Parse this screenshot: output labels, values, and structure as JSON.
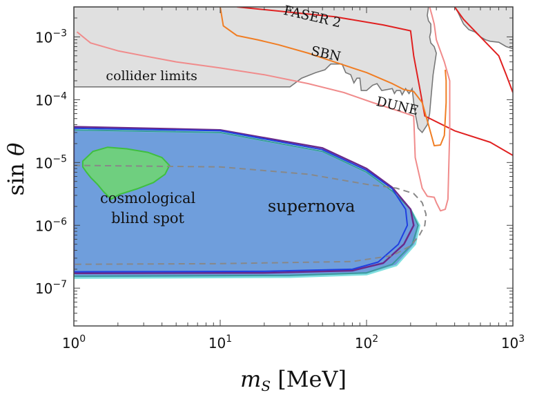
{
  "chart_data": {
    "type": "area",
    "xlabel": "m_S [MeV]",
    "ylabel": "sin θ",
    "xscale": "log",
    "yscale": "log",
    "xlim": [
      1,
      1000
    ],
    "ylim": [
      2.5e-08,
      0.003
    ],
    "x_ticks": [
      {
        "base": "10",
        "exp": "0",
        "value": 1
      },
      {
        "base": "10",
        "exp": "1",
        "value": 10
      },
      {
        "base": "10",
        "exp": "2",
        "value": 100
      },
      {
        "base": "10",
        "exp": "3",
        "value": 1000
      }
    ],
    "y_ticks": [
      {
        "base": "10",
        "exp": "−7",
        "value": 1e-07
      },
      {
        "base": "10",
        "exp": "−6",
        "value": 1e-06
      },
      {
        "base": "10",
        "exp": "−5",
        "value": 1e-05
      },
      {
        "base": "10",
        "exp": "−4",
        "value": 0.0001
      },
      {
        "base": "10",
        "exp": "−3",
        "value": 0.001
      }
    ],
    "regions": [
      {
        "label": "supernova",
        "fill": "#6f9edc",
        "boundaries": [
          {
            "name": "supernova-outer-cyan",
            "color": "#7fe0de",
            "width": 2.5,
            "points": [
              [
                1,
                3.3e-05
              ],
              [
                10,
                3e-05
              ],
              [
                50,
                1.5e-05
              ],
              [
                100,
                7e-06
              ],
              [
                150,
                3.5e-06
              ],
              [
                200,
                1.8e-06
              ],
              [
                230,
                1e-06
              ],
              [
                215,
                5e-07
              ],
              [
                160,
                2.3e-07
              ],
              [
                100,
                1.65e-07
              ],
              [
                30,
                1.5e-07
              ],
              [
                1,
                1.45e-07
              ]
            ]
          },
          {
            "name": "supernova-teal",
            "color": "#3a9a9a",
            "width": 2,
            "points": [
              [
                1,
                3.3e-05
              ],
              [
                10,
                3e-05
              ],
              [
                50,
                1.5e-05
              ],
              [
                100,
                7e-06
              ],
              [
                150,
                3.5e-06
              ],
              [
                200,
                1.8e-06
              ],
              [
                225,
                1e-06
              ],
              [
                205,
                5e-07
              ],
              [
                150,
                2.4e-07
              ],
              [
                100,
                1.75e-07
              ],
              [
                30,
                1.6e-07
              ],
              [
                1,
                1.55e-07
              ]
            ]
          },
          {
            "name": "supernova-purple",
            "color": "#6a2a8a",
            "width": 2.5,
            "points": [
              [
                1,
                3.7e-05
              ],
              [
                10,
                3.3e-05
              ],
              [
                50,
                1.7e-05
              ],
              [
                100,
                8e-06
              ],
              [
                150,
                4e-06
              ],
              [
                200,
                1.8e-06
              ],
              [
                210,
                1e-06
              ],
              [
                180,
                5e-07
              ],
              [
                130,
                2.5e-07
              ],
              [
                80,
                1.9e-07
              ],
              [
                20,
                1.75e-07
              ],
              [
                1,
                1.72e-07
              ]
            ]
          },
          {
            "name": "supernova-blue",
            "color": "#1f3fe0",
            "width": 2,
            "points": [
              [
                1,
                3.5e-05
              ],
              [
                10,
                3.2e-05
              ],
              [
                50,
                1.6e-05
              ],
              [
                100,
                7.5e-06
              ],
              [
                150,
                3.8e-06
              ],
              [
                185,
                1.8e-06
              ],
              [
                190,
                1e-06
              ],
              [
                165,
                5e-07
              ],
              [
                120,
                2.6e-07
              ],
              [
                80,
                2e-07
              ],
              [
                20,
                1.85e-07
              ],
              [
                1,
                1.82e-07
              ]
            ]
          }
        ]
      },
      {
        "label": "cosmological blind spot",
        "fill": "#6fcf7f",
        "stroke": "#3fbf3f",
        "points": [
          [
            1.15,
            1.05e-05
          ],
          [
            1.35,
            1.5e-05
          ],
          [
            1.7,
            1.75e-05
          ],
          [
            2.3,
            1.65e-05
          ],
          [
            3.2,
            1.45e-05
          ],
          [
            4.0,
            1.2e-05
          ],
          [
            4.5,
            9e-06
          ],
          [
            4.2,
            6.5e-06
          ],
          [
            3.5,
            4.8e-06
          ],
          [
            2.7,
            3.8e-06
          ],
          [
            2.05,
            3.1e-06
          ],
          [
            1.8,
            2.6e-06
          ],
          [
            1.6,
            3.4e-06
          ],
          [
            1.45,
            4.5e-06
          ],
          [
            1.3,
            5.8e-06
          ],
          [
            1.22,
            7e-06
          ],
          [
            1.15,
            8.5e-06
          ]
        ]
      },
      {
        "label": "collider limits",
        "fill": "#e0e0e0",
        "stroke": "#777777",
        "points": [
          [
            1,
            0.00016
          ],
          [
            30,
            0.00016
          ],
          [
            36,
            0.00022
          ],
          [
            45,
            0.00027
          ],
          [
            52,
            0.0003
          ],
          [
            57,
            0.00037
          ],
          [
            68,
            0.00037
          ],
          [
            72,
            0.00027
          ],
          [
            78,
            0.00025
          ],
          [
            82,
            0.000185
          ],
          [
            86,
            0.00022
          ],
          [
            90,
            0.00022
          ],
          [
            92,
            0.00014
          ],
          [
            100,
            0.00014
          ],
          [
            110,
            0.00017
          ],
          [
            118,
            0.00018
          ],
          [
            127,
            0.00014
          ],
          [
            150,
            0.00015
          ],
          [
            155,
            0.000125
          ],
          [
            160,
            0.00014
          ],
          [
            170,
            0.00014
          ],
          [
            175,
            0.00012
          ],
          [
            185,
            0.00015
          ],
          [
            195,
            0.000125
          ],
          [
            205,
            0.00015
          ],
          [
            210,
            9e-05
          ],
          [
            215,
            6e-05
          ],
          [
            225,
            3.5e-05
          ],
          [
            240,
            3e-05
          ],
          [
            260,
            4e-05
          ],
          [
            270,
            6e-05
          ],
          [
            275,
            0.0001
          ],
          [
            285,
            0.00025
          ],
          [
            300,
            0.00055
          ],
          [
            290,
            0.0007
          ],
          [
            275,
            0.0008
          ],
          [
            270,
            0.001
          ],
          [
            275,
            0.0012
          ],
          [
            275,
            0.0016
          ],
          [
            265,
            0.0018
          ],
          [
            260,
            0.0022
          ],
          [
            265,
            0.003
          ],
          [
            400,
            0.003
          ],
          [
            420,
            0.0025
          ],
          [
            460,
            0.0016
          ],
          [
            500,
            0.0013
          ],
          [
            550,
            0.0012
          ],
          [
            600,
            0.001
          ],
          [
            650,
            0.0009
          ],
          [
            700,
            0.00085
          ],
          [
            800,
            0.00082
          ],
          [
            900,
            0.0007
          ],
          [
            1000,
            0.00065
          ],
          [
            1000,
            0.003
          ],
          [
            1,
            0.003
          ]
        ]
      }
    ],
    "series": [
      {
        "name": "FASER 2",
        "color": "#e02020",
        "points": [
          [
            13,
            0.003
          ],
          [
            60,
            0.0021
          ],
          [
            130,
            0.00155
          ],
          [
            200,
            0.00125
          ],
          [
            210,
            0.0005
          ],
          [
            230,
            0.00016
          ],
          [
            250,
            5.5e-05
          ],
          [
            400,
            3.2e-05
          ],
          [
            700,
            2.1e-05
          ],
          [
            1000,
            1.3e-05
          ]
        ]
      },
      {
        "name": "FASER 2 (upper)",
        "color": "#e02020",
        "points": [
          [
            400,
            0.003
          ],
          [
            460,
            0.0019
          ],
          [
            600,
            0.001
          ],
          [
            800,
            0.0005
          ],
          [
            900,
            0.00025
          ],
          [
            1000,
            0.00013
          ]
        ]
      },
      {
        "name": "SBN",
        "color": "#f07d23",
        "points": [
          [
            10,
            0.003
          ],
          [
            10.5,
            0.0015
          ],
          [
            13,
            0.00105
          ],
          [
            18,
            0.0009
          ],
          [
            25,
            0.00075
          ],
          [
            40,
            0.00055
          ],
          [
            60,
            0.0004
          ],
          [
            100,
            0.00027
          ],
          [
            150,
            0.00018
          ],
          [
            180,
            0.000145
          ],
          [
            210,
            0.000135
          ],
          [
            240,
            9e-05
          ],
          [
            265,
            4e-05
          ],
          [
            280,
            2.5e-05
          ],
          [
            290,
            1.85e-05
          ],
          [
            320,
            1.9e-05
          ],
          [
            340,
            2.7e-05
          ],
          [
            350,
            9e-05
          ],
          [
            350,
            0.0002
          ],
          [
            345,
            0.0003
          ]
        ]
      },
      {
        "name": "DUNE",
        "color": "#f08b8b",
        "points": [
          [
            1.05,
            0.0012
          ],
          [
            1.3,
            0.0008
          ],
          [
            2,
            0.0006
          ],
          [
            3,
            0.0005
          ],
          [
            5,
            0.0004
          ],
          [
            10,
            0.00032
          ],
          [
            20,
            0.00025
          ],
          [
            40,
            0.00018
          ],
          [
            70,
            0.00013
          ],
          [
            110,
            9e-05
          ],
          [
            180,
            6.2e-05
          ],
          [
            210,
            5.5e-05
          ],
          [
            215,
            1.2e-05
          ],
          [
            240,
            3.9e-06
          ],
          [
            260,
            2.9e-06
          ],
          [
            290,
            2.8e-06
          ],
          [
            300,
            2.3e-06
          ],
          [
            320,
            1.7e-06
          ],
          [
            345,
            1.8e-06
          ],
          [
            360,
            2.6e-06
          ],
          [
            370,
            3.2e-05
          ],
          [
            370,
            0.0002
          ],
          [
            340,
            0.0004
          ],
          [
            300,
            0.0009
          ],
          [
            290,
            0.0016
          ],
          [
            280,
            0.0022
          ],
          [
            270,
            0.003
          ]
        ]
      },
      {
        "name": "supernova-dashed",
        "color": "#888888",
        "dashed": true,
        "points": [
          [
            1,
            9e-06
          ],
          [
            10,
            8.5e-06
          ],
          [
            40,
            6.5e-06
          ],
          [
            100,
            4.5e-06
          ],
          [
            160,
            3.9e-06
          ],
          [
            210,
            3.2e-06
          ],
          [
            240,
            2.3e-06
          ],
          [
            255,
            1.5e-06
          ],
          [
            250,
            1e-06
          ],
          [
            230,
            7e-07
          ],
          [
            200,
            4.7e-07
          ],
          [
            150,
            3.3e-07
          ],
          [
            80,
            2.65e-07
          ],
          [
            10,
            2.45e-07
          ],
          [
            1,
            2.4e-07
          ]
        ]
      }
    ],
    "annotations": [
      {
        "name": "annot-faser2",
        "text": "FASER 2",
        "x": 42,
        "y": 0.0018,
        "rotate": 13,
        "size": 19
      },
      {
        "name": "annot-sbn",
        "text": "SBN",
        "x": 52,
        "y": 0.00046,
        "rotate": 12,
        "size": 19
      },
      {
        "name": "annot-dune",
        "text": "DUNE",
        "x": 160,
        "y": 6.8e-05,
        "rotate": 13,
        "size": 19
      },
      {
        "name": "annot-collider",
        "text": "collider limits",
        "x": 3.4,
        "y": 0.000205,
        "rotate": 0,
        "size": 19
      },
      {
        "name": "annot-supernova",
        "text": "supernova",
        "x": 42,
        "y": 1.65e-06,
        "rotate": 0,
        "size": 24
      },
      {
        "name": "annot-cosmo-1",
        "text": "cosmological",
        "x": 3.2,
        "y": 2.25e-06,
        "rotate": 0,
        "size": 21
      },
      {
        "name": "annot-cosmo-2",
        "text": "blind spot",
        "x": 3.2,
        "y": 1.08e-06,
        "rotate": 0,
        "size": 21
      }
    ]
  }
}
